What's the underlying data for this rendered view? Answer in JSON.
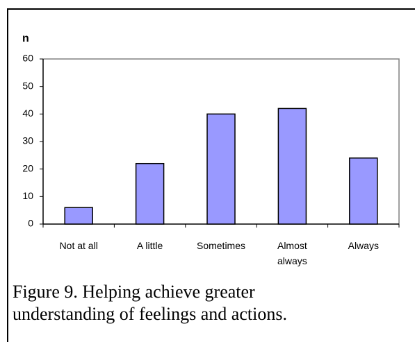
{
  "chart_data": {
    "type": "bar",
    "y_label": "n",
    "categories": [
      "Not at all",
      "A little",
      "Sometimes",
      "Almost always",
      "Always"
    ],
    "values": [
      6,
      22,
      40,
      42,
      24
    ],
    "color": "#9999ff",
    "ylim": [
      0,
      60
    ],
    "yticks": [
      0,
      10,
      20,
      30,
      40,
      50,
      60
    ],
    "grid": false,
    "caption": "Figure 9. Helping achieve greater understanding of feelings and actions."
  }
}
